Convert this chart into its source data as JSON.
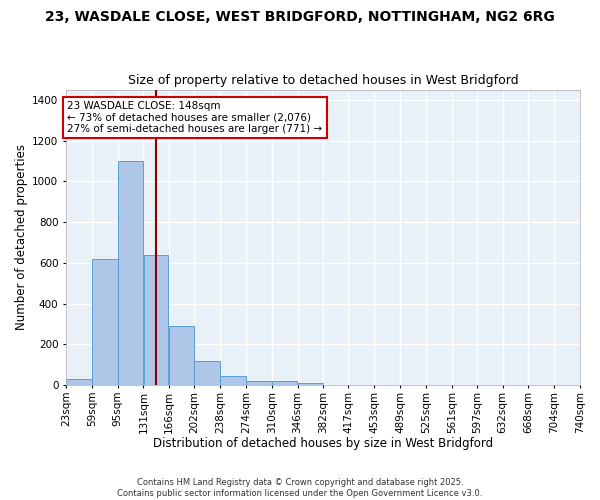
{
  "title_line1": "23, WASDALE CLOSE, WEST BRIDGFORD, NOTTINGHAM, NG2 6RG",
  "title_line2": "Size of property relative to detached houses in West Bridgford",
  "xlabel": "Distribution of detached houses by size in West Bridgford",
  "ylabel": "Number of detached properties",
  "bar_edges": [
    23,
    59,
    95,
    131,
    166,
    202,
    238,
    274,
    310,
    346,
    382,
    417,
    453,
    489,
    525,
    561,
    597,
    632,
    668,
    704,
    740
  ],
  "bar_heights": [
    30,
    620,
    1100,
    640,
    290,
    120,
    47,
    22,
    22,
    10,
    0,
    0,
    0,
    0,
    0,
    0,
    0,
    0,
    0,
    0
  ],
  "bar_color": "#aec6e8",
  "bar_edge_color": "#5a9fd4",
  "bg_color": "#e8f0f8",
  "grid_color": "#ffffff",
  "vline_x": 148,
  "vline_color": "#8b0000",
  "annotation_text": "23 WASDALE CLOSE: 148sqm\n← 73% of detached houses are smaller (2,076)\n27% of semi-detached houses are larger (771) →",
  "annotation_box_color": "#ffffff",
  "annotation_box_edge": "#cc0000",
  "ylim": [
    0,
    1450
  ],
  "yticks": [
    0,
    200,
    400,
    600,
    800,
    1000,
    1200,
    1400
  ],
  "footnote": "Contains HM Land Registry data © Crown copyright and database right 2025.\nContains public sector information licensed under the Open Government Licence v3.0.",
  "title_fontsize": 10,
  "subtitle_fontsize": 9,
  "axis_label_fontsize": 8.5,
  "tick_fontsize": 7.5,
  "annot_fontsize": 7.5,
  "fig_bg_color": "#ffffff"
}
